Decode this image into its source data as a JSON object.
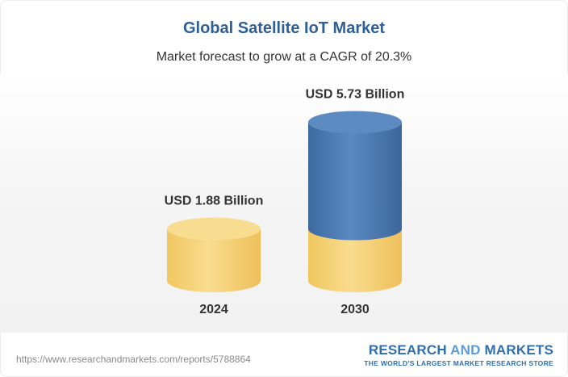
{
  "chart_data": {
    "type": "bar",
    "title": "Global Satellite IoT Market",
    "subtitle": "Market forecast to grow at a CAGR of 20.3%",
    "categories": [
      "2024",
      "2030"
    ],
    "values": [
      1.88,
      5.73
    ],
    "value_labels": [
      "USD 1.88 Billion",
      "USD 5.73 Billion"
    ],
    "ylim": [
      0,
      6
    ],
    "grid": false,
    "legend": "none",
    "colors": {
      "base": "#f5d27a",
      "growth": "#4a78ad"
    }
  },
  "footer": {
    "url": "https://www.researchandmarkets.com/reports/5788864",
    "brand_research": "RESEARCH",
    "brand_and": "AND",
    "brand_markets": "MARKETS",
    "brand_tagline": "THE WORLD'S LARGEST MARKET RESEARCH STORE"
  }
}
